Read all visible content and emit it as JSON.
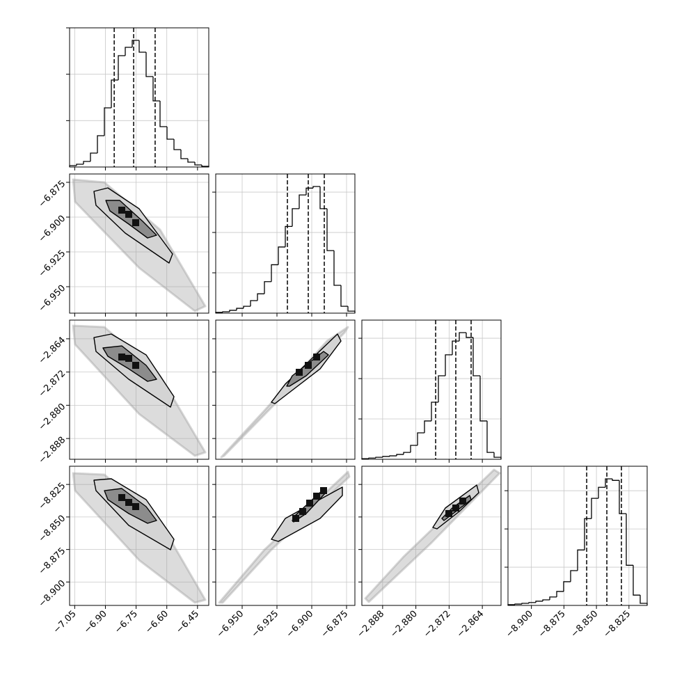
{
  "chart_data": {
    "type": "corner",
    "grid": true,
    "line_color": "#000000",
    "cloud_color": "#9a9a9a",
    "variables": [
      {
        "lim": [
          -7.075,
          -6.395
        ],
        "ticks": [
          {
            "value": -7.05,
            "label": "−7.05"
          },
          {
            "value": -6.9,
            "label": "−6.90"
          },
          {
            "value": -6.75,
            "label": "−6.75"
          },
          {
            "value": -6.6,
            "label": "−6.60"
          },
          {
            "value": -6.45,
            "label": "−6.45"
          }
        ],
        "hist": {
          "bins": [
            -7.075,
            -7.041,
            -7.007,
            -6.973,
            -6.939,
            -6.905,
            -6.871,
            -6.837,
            -6.803,
            -6.769,
            -6.735,
            -6.701,
            -6.667,
            -6.633,
            -6.599,
            -6.565,
            -6.531,
            -6.497,
            -6.463,
            -6.429,
            -6.395
          ],
          "counts": [
            30,
            60,
            120,
            300,
            675,
            1275,
            1875,
            2400,
            2580,
            2730,
            2475,
            1950,
            1425,
            870,
            600,
            375,
            180,
            105,
            45,
            15
          ],
          "ylim": [
            0,
            3000
          ],
          "yticks": [
            1000,
            2000,
            3000
          ],
          "quantiles": [
            -6.857,
            -6.762,
            -6.657
          ]
        }
      },
      {
        "lim": [
          -6.969,
          -6.869
        ],
        "ticks": [
          {
            "value": -6.95,
            "label": "−6.950"
          },
          {
            "value": -6.925,
            "label": "−6.925"
          },
          {
            "value": -6.9,
            "label": "−6.900"
          },
          {
            "value": -6.875,
            "label": "−6.875"
          }
        ],
        "hist": {
          "bins": [
            -6.969,
            -6.964,
            -6.959,
            -6.954,
            -6.949,
            -6.944,
            -6.939,
            -6.934,
            -6.929,
            -6.924,
            -6.919,
            -6.914,
            -6.909,
            -6.904,
            -6.899,
            -6.894,
            -6.889,
            -6.884,
            -6.879,
            -6.874,
            -6.869
          ],
          "counts": [
            20,
            35,
            70,
            120,
            170,
            310,
            480,
            780,
            1200,
            1640,
            2150,
            2590,
            2930,
            3100,
            3140,
            2590,
            1550,
            690,
            170,
            50
          ],
          "ylim": [
            0,
            3450
          ],
          "yticks": [
            1000,
            2000,
            3000
          ],
          "quantiles": [
            -6.9175,
            -6.9025,
            -6.891
          ]
        },
        "pairs": [
          {
            "cloud": {
              "x": [
                -7.058,
                -6.905,
                -6.633,
                -6.412,
                -6.463,
                -6.735,
                -7.048
              ],
              "y": [
                -6.873,
                -6.875,
                -6.909,
                -6.964,
                -6.9675,
                -6.9365,
                -6.889
              ]
            },
            "contours": [
              {
                "x": [
                  -6.956,
                  -6.888,
                  -6.735,
                  -6.572,
                  -6.589,
                  -6.803,
                  -6.946
                ],
                "y": [
                  -6.8815,
                  -6.879,
                  -6.894,
                  -6.9265,
                  -6.933,
                  -6.9115,
                  -6.8915
                ]
              },
              {
                "x": [
                  -6.898,
                  -6.83,
                  -6.718,
                  -6.65,
                  -6.694,
                  -6.786,
                  -6.878
                ],
                "y": [
                  -6.888,
                  -6.888,
                  -6.903,
                  -6.913,
                  -6.915,
                  -6.905,
                  -6.8955
                ]
              }
            ],
            "peaks": {
              "x": [
                -6.82,
                -6.786,
                -6.752
              ],
              "y": [
                -6.895,
                -6.898,
                -6.904
              ]
            }
          }
        ]
      },
      {
        "lim": [
          -2.893,
          -2.8595
        ],
        "ticks": [
          {
            "value": -2.888,
            "label": "−2.888"
          },
          {
            "value": -2.88,
            "label": "−2.880"
          },
          {
            "value": -2.872,
            "label": "−2.872"
          },
          {
            "value": -2.864,
            "label": "−2.864"
          }
        ],
        "hist": {
          "bins": [
            -2.893,
            -2.891325,
            -2.88965,
            -2.887975,
            -2.8863,
            -2.884625,
            -2.88295,
            -2.881275,
            -2.8796,
            -2.877925,
            -2.87625,
            -2.874575,
            -2.8729,
            -2.871225,
            -2.86955,
            -2.867875,
            -2.8662,
            -2.864525,
            -2.86285,
            -2.861175,
            -2.8595
          ],
          "counts": [
            15,
            30,
            50,
            70,
            85,
            120,
            170,
            345,
            655,
            950,
            1415,
            2070,
            2590,
            2930,
            3140,
            3020,
            2070,
            950,
            170,
            50
          ],
          "ylim": [
            0,
            3450
          ],
          "yticks": [
            1000,
            2000,
            3000
          ],
          "quantiles": [
            -2.87524,
            -2.87039,
            -2.8667
          ]
        },
        "pairs": [
          {
            "cloud": {
              "x": [
                -7.058,
                -6.905,
                -6.633,
                -6.412,
                -6.463,
                -6.735,
                -7.048
              ],
              "y": [
                -2.86084,
                -2.86118,
                -2.8729,
                -2.89133,
                -2.89216,
                -2.88211,
                -2.86536
              ]
            },
            "contours": [
              {
                "x": [
                  -6.956,
                  -6.871,
                  -6.701,
                  -6.565,
                  -6.582,
                  -6.786,
                  -6.946
                ],
                "y": [
                  -2.86369,
                  -2.86285,
                  -2.86788,
                  -2.87793,
                  -2.88044,
                  -2.87374,
                  -2.86704
                ]
              },
              {
                "x": [
                  -6.912,
                  -6.82,
                  -6.701,
                  -6.65,
                  -6.694,
                  -6.786,
                  -6.888
                ],
                "y": [
                  -2.8662,
                  -2.8657,
                  -2.87039,
                  -2.87374,
                  -2.87424,
                  -2.87123,
                  -2.86821
                ]
              }
            ],
            "peaks": {
              "x": [
                -6.82,
                -6.786,
                -6.752
              ],
              "y": [
                -2.86838,
                -2.86871,
                -2.87039
              ]
            }
          },
          {
            "cloud": {
              "x": [
                -6.965,
                -6.934,
                -6.889,
                -6.874,
                -6.8765,
                -6.909,
                -6.963
              ],
              "y": [
                -2.8925,
                -2.88128,
                -2.86453,
                -2.86118,
                -2.86252,
                -2.87374,
                -2.89216
              ]
            },
            "contours": [
              {
                "x": [
                  -6.929,
                  -6.919,
                  -6.8815,
                  -6.879,
                  -6.894,
                  -6.9265
                ],
                "y": [
                  -2.87926,
                  -2.8749,
                  -2.86285,
                  -2.86453,
                  -2.87123,
                  -2.8796
                ]
              },
              {
                "x": [
                  -6.918,
                  -6.914,
                  -6.8915,
                  -6.888,
                  -6.904,
                  -6.916
                ],
                "y": [
                  -2.87541,
                  -2.8729,
                  -2.86704,
                  -2.86788,
                  -2.8729,
                  -2.87541
                ]
              }
            ],
            "peaks": {
              "x": [
                -6.909,
                -6.9025,
                -6.8965
              ],
              "y": [
                -2.87206,
                -2.87039,
                -2.86838
              ]
            }
          }
        ]
      },
      {
        "lim": [
          -8.918,
          -8.811
        ],
        "ticks": [
          {
            "value": -8.9,
            "label": "−8.900"
          },
          {
            "value": -8.875,
            "label": "−8.875"
          },
          {
            "value": -8.85,
            "label": "−8.850"
          },
          {
            "value": -8.825,
            "label": "−8.825"
          }
        ],
        "hist": {
          "bins": [
            -8.918,
            -8.91265,
            -8.9073,
            -8.90195,
            -8.8966,
            -8.89125,
            -8.8859,
            -8.88055,
            -8.8752,
            -8.86985,
            -8.8645,
            -8.85915,
            -8.8538,
            -8.84845,
            -8.8431,
            -8.83775,
            -8.8324,
            -8.82705,
            -8.8217,
            -8.81635,
            -8.811
          ],
          "counts": [
            20,
            35,
            55,
            75,
            110,
            145,
            220,
            365,
            620,
            910,
            1450,
            2270,
            2800,
            3090,
            3310,
            3270,
            2400,
            1050,
            270,
            55
          ],
          "ylim": [
            0,
            3640
          ],
          "yticks": [
            1000,
            2000,
            3000
          ],
          "quantiles": [
            -8.8575,
            -8.842,
            -8.8308
          ]
        },
        "pairs": [
          {
            "cloud": {
              "x": [
                -7.058,
                -6.905,
                -6.633,
                -6.412,
                -6.463,
                -6.735,
                -7.048
              ],
              "y": [
                -8.81635,
                -8.81742,
                -8.8538,
                -8.91372,
                -8.91586,
                -8.88323,
                -8.82973
              ]
            },
            "contours": [
              {
                "x": [
                  -6.956,
                  -6.871,
                  -6.701,
                  -6.565,
                  -6.582,
                  -6.786,
                  -6.946
                ],
                "y": [
                  -8.8217,
                  -8.82063,
                  -8.83668,
                  -8.86718,
                  -8.8752,
                  -8.85648,
                  -8.82973
                ]
              },
              {
                "x": [
                  -6.905,
                  -6.82,
                  -6.701,
                  -6.65,
                  -6.694,
                  -6.786,
                  -6.888
                ],
                "y": [
                  -8.82973,
                  -8.82812,
                  -8.84203,
                  -8.85273,
                  -8.85487,
                  -8.84738,
                  -8.83668
                ]
              }
            ],
            "peaks": {
              "x": [
                -6.82,
                -6.786,
                -6.752
              ],
              "y": [
                -8.83508,
                -8.83882,
                -8.84203
              ]
            }
          },
          {
            "cloud": {
              "x": [
                -6.9665,
                -6.934,
                -6.874,
                -6.873,
                -6.929,
                -6.964
              ],
              "y": [
                -8.91586,
                -8.8752,
                -8.81528,
                -8.81903,
                -8.8752,
                -8.91586
              ]
            },
            "contours": [
              {
                "x": [
                  -6.929,
                  -6.919,
                  -6.878,
                  -6.878,
                  -6.894,
                  -6.924
                ],
                "y": [
                  -8.86718,
                  -8.85113,
                  -8.82705,
                  -8.83347,
                  -8.85113,
                  -8.86878
                ]
              },
              {
                "x": [
                  -6.914,
                  -6.9115,
                  -6.8915,
                  -6.89,
                  -6.904,
                  -6.913
                ],
                "y": [
                  -8.85273,
                  -8.84845,
                  -8.82866,
                  -8.83133,
                  -8.84738,
                  -8.8538
                ]
              }
            ],
            "peaks": {
              "x": [
                -6.9115,
                -6.9065,
                -6.9015,
                -6.8965,
                -6.8915
              ],
              "y": [
                -8.85113,
                -8.84578,
                -8.83936,
                -8.834,
                -8.82973
              ]
            }
          },
          {
            "cloud": {
              "x": [
                -2.89216,
                -2.88295,
                -2.86118,
                -2.85984,
                -2.87625,
                -2.89133
              ],
              "y": [
                -8.91265,
                -8.88055,
                -8.81368,
                -8.81635,
                -8.86985,
                -8.91533
              ]
            },
            "contours": [
              {
                "x": [
                  -2.87592,
                  -2.8729,
                  -2.86536,
                  -2.86486,
                  -2.86955,
                  -2.87491
                ],
                "y": [
                  -8.85808,
                  -8.8431,
                  -8.82545,
                  -8.83133,
                  -8.84578,
                  -8.85915
                ]
              },
              {
                "x": [
                  -2.87374,
                  -2.87123,
                  -2.86704,
                  -2.8667,
                  -2.87039,
                  -2.87324
                ],
                "y": [
                  -8.85113,
                  -8.8431,
                  -8.83347,
                  -8.83668,
                  -8.84578,
                  -8.85273
                ]
              }
            ],
            "peaks": {
              "x": [
                -2.87206,
                -2.87039,
                -2.86871
              ],
              "y": [
                -8.84738,
                -8.8431,
                -8.83775
              ]
            }
          }
        ]
      }
    ]
  }
}
